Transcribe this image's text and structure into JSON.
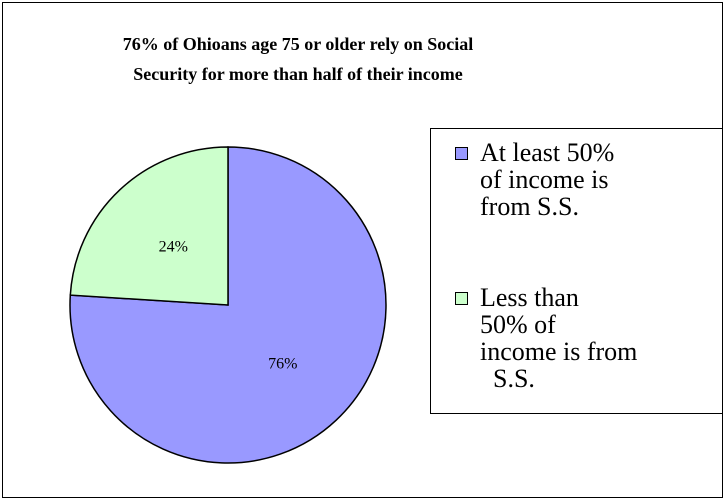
{
  "chart_data": {
    "type": "pie",
    "title_lines": [
      "76% of Ohioans age 75 or older rely on Social",
      "Security for more than half of their income"
    ],
    "slices": [
      {
        "name_lines": [
          "At least 50%",
          "of income is",
          "from S.S."
        ],
        "value": 76,
        "label": "76%",
        "color": "#9999ff"
      },
      {
        "name_lines": [
          "Less than",
          "50% of",
          "income is from",
          "  S.S."
        ],
        "value": 24,
        "label": "24%",
        "color": "#ccffcc"
      }
    ],
    "start": "12 o'clock",
    "direction": "clockwise",
    "legend_position": "right"
  }
}
